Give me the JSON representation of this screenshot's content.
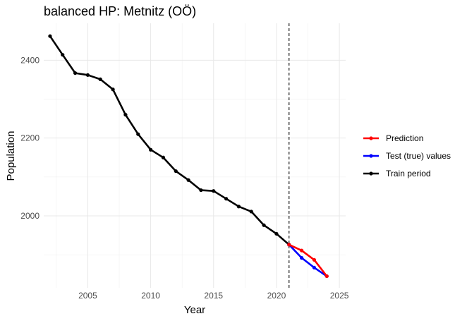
{
  "chart_data": {
    "type": "line",
    "title": "balanced HP: Metnitz (OÖ)",
    "xlabel": "Year",
    "ylabel": "Population",
    "xlim": [
      2001.5,
      2025.5
    ],
    "ylim": [
      1815,
      2495
    ],
    "x_ticks": [
      "2005",
      "2010",
      "2015",
      "2020",
      "2025"
    ],
    "y_ticks": [
      "2000",
      "2200",
      "2400"
    ],
    "grid": true,
    "vline": 2021,
    "legend_position": "right",
    "series": [
      {
        "name": "Train period",
        "color": "#000000",
        "x": [
          2002,
          2003,
          2004,
          2005,
          2006,
          2007,
          2008,
          2009,
          2010,
          2011,
          2012,
          2013,
          2014,
          2015,
          2016,
          2017,
          2018,
          2019,
          2020,
          2021
        ],
        "values": [
          2462,
          2414,
          2367,
          2362,
          2351,
          2325,
          2260,
          2210,
          2170,
          2150,
          2115,
          2092,
          2066,
          2064,
          2044,
          2024,
          2011,
          1976,
          1954,
          1926
        ]
      },
      {
        "name": "Test (true) values",
        "color": "#0000ff",
        "x": [
          2021,
          2022,
          2023,
          2024
        ],
        "values": [
          1926,
          1892,
          1867,
          1845
        ]
      },
      {
        "name": "Prediction",
        "color": "#ff0000",
        "x": [
          2021,
          2022,
          2023,
          2024
        ],
        "values": [
          1926,
          1911,
          1887,
          1845
        ]
      }
    ],
    "legend": [
      "Prediction",
      "Test (true) values",
      "Train period"
    ]
  }
}
